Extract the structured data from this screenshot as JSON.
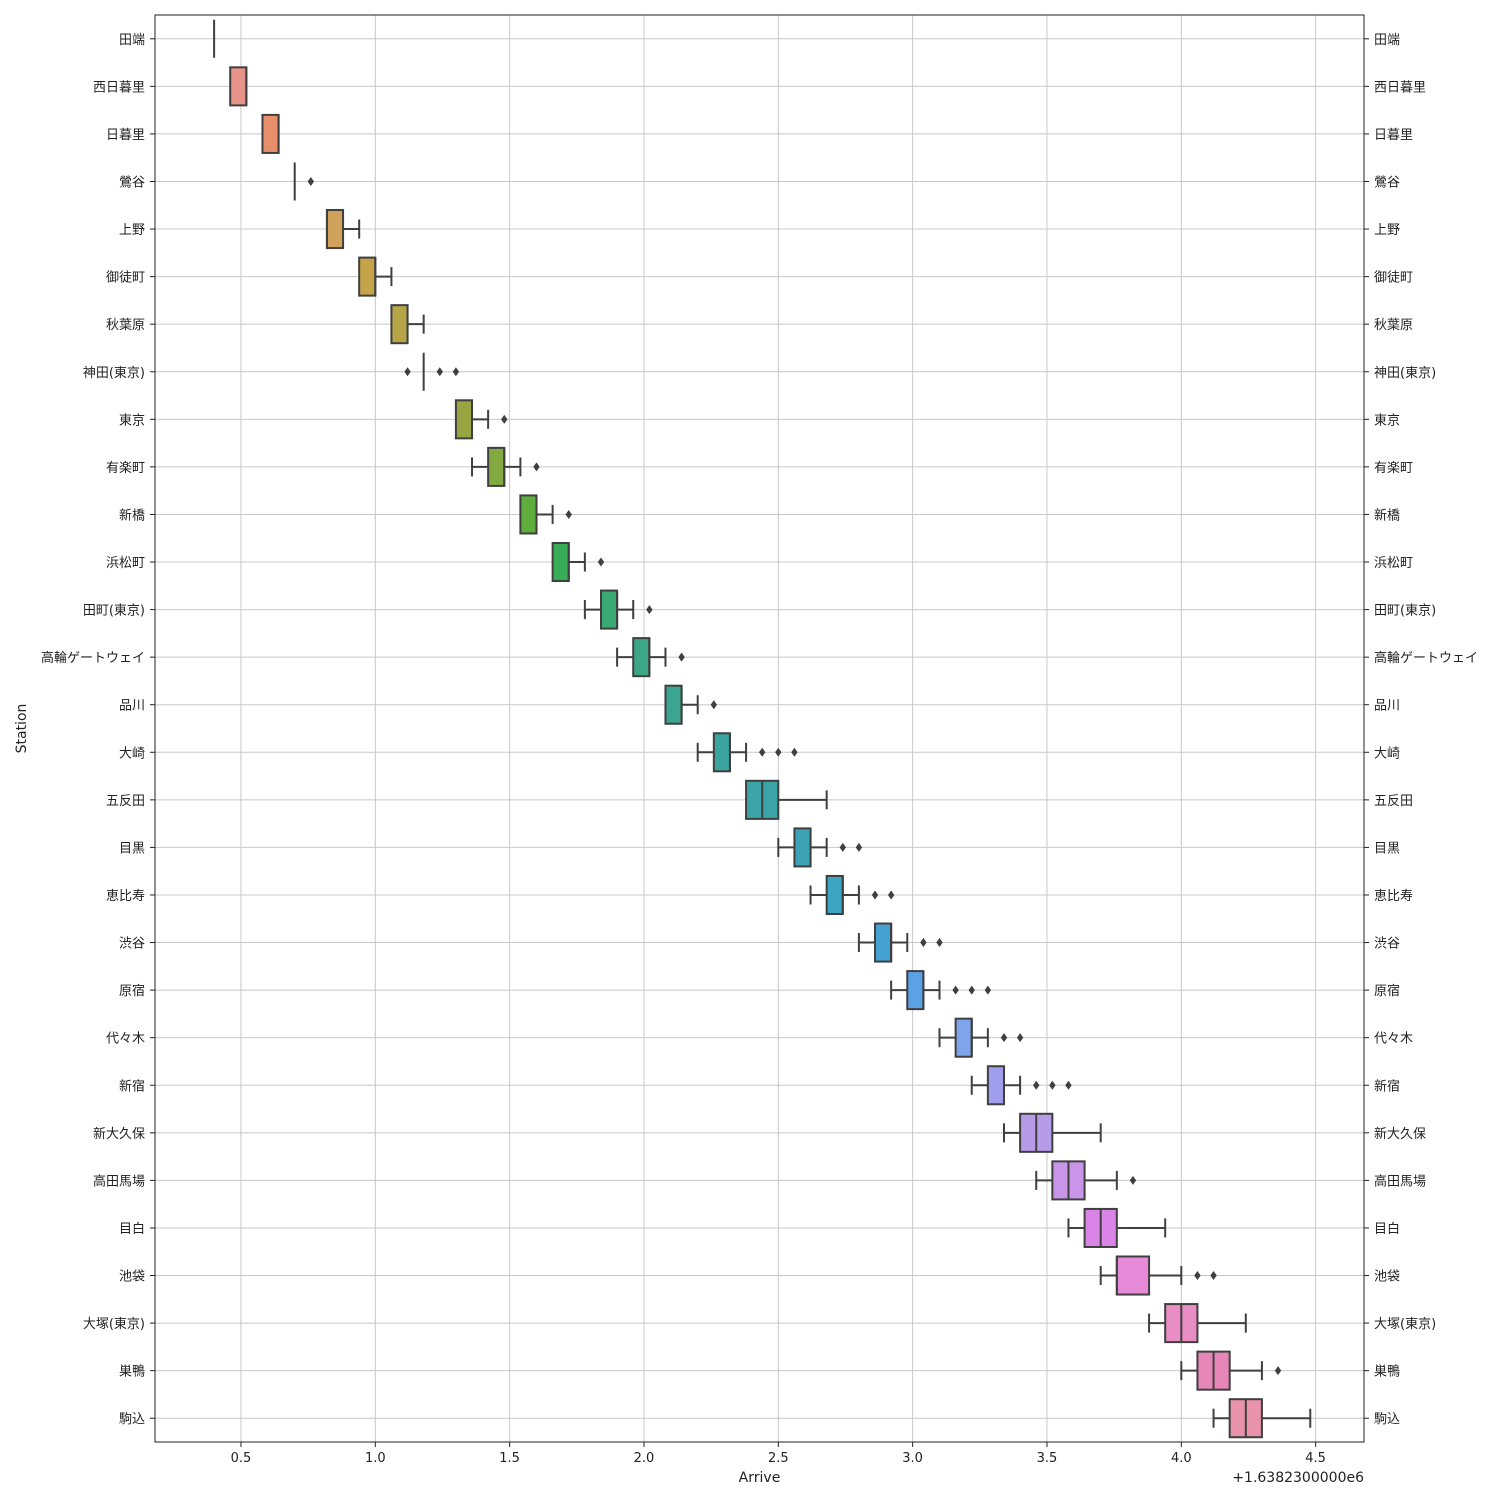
{
  "chart_data": {
    "type": "boxplot",
    "orientation": "horizontal",
    "xlabel": "Arrive",
    "ylabel": "Station",
    "x_offset_label": "+1.6382300000e6",
    "xlim": [
      0.18,
      4.68
    ],
    "xticks": [
      "0.5",
      "1.0",
      "1.5",
      "2.0",
      "2.5",
      "3.0",
      "3.5",
      "4.0",
      "4.5"
    ],
    "grid": true,
    "mirror_y_labels": true,
    "categories": [
      "田端",
      "西日暮里",
      "日暮里",
      "鶯谷",
      "上野",
      "御徒町",
      "秋葉原",
      "神田(東京)",
      "東京",
      "有楽町",
      "新橋",
      "浜松町",
      "田町(東京)",
      "高輪ゲートウェイ",
      "品川",
      "大崎",
      "五反田",
      "目黒",
      "恵比寿",
      "渋谷",
      "原宿",
      "代々木",
      "新宿",
      "新大久保",
      "高田馬場",
      "目白",
      "池袋",
      "大塚(東京)",
      "巣鴨",
      "駒込"
    ],
    "boxes": [
      {
        "station": "田端",
        "whislo": 0.4,
        "q1": 0.4,
        "med": 0.4,
        "q3": 0.4,
        "whishi": 0.4,
        "fliers": [],
        "color": "#e8837a"
      },
      {
        "station": "西日暮里",
        "whislo": 0.46,
        "q1": 0.46,
        "med": 0.52,
        "q3": 0.52,
        "whishi": 0.52,
        "fliers": [],
        "color": "#e8948a"
      },
      {
        "station": "日暮里",
        "whislo": 0.58,
        "q1": 0.58,
        "med": 0.64,
        "q3": 0.64,
        "whishi": 0.64,
        "fliers": [],
        "color": "#e98e6b"
      },
      {
        "station": "鶯谷",
        "whislo": 0.7,
        "q1": 0.7,
        "med": 0.7,
        "q3": 0.7,
        "whishi": 0.7,
        "fliers": [
          0.76
        ],
        "color": "#e3995a"
      },
      {
        "station": "上野",
        "whislo": 0.82,
        "q1": 0.82,
        "med": 0.82,
        "q3": 0.88,
        "whishi": 0.94,
        "fliers": [],
        "color": "#d1a25c"
      },
      {
        "station": "御徒町",
        "whislo": 0.94,
        "q1": 0.94,
        "med": 1.0,
        "q3": 1.0,
        "whishi": 1.06,
        "fliers": [],
        "color": "#c4a349"
      },
      {
        "station": "秋葉原",
        "whislo": 1.06,
        "q1": 1.06,
        "med": 1.12,
        "q3": 1.12,
        "whishi": 1.18,
        "fliers": [],
        "color": "#b7a548"
      },
      {
        "station": "神田(東京)",
        "whislo": 1.18,
        "q1": 1.18,
        "med": 1.18,
        "q3": 1.18,
        "whishi": 1.18,
        "fliers": [
          1.12,
          1.24,
          1.3
        ],
        "color": "#a9a845"
      },
      {
        "station": "東京",
        "whislo": 1.3,
        "q1": 1.3,
        "med": 1.36,
        "q3": 1.36,
        "whishi": 1.42,
        "fliers": [
          1.48
        ],
        "color": "#98a641"
      },
      {
        "station": "有楽町",
        "whislo": 1.36,
        "q1": 1.42,
        "med": 1.48,
        "q3": 1.48,
        "whishi": 1.54,
        "fliers": [
          1.6
        ],
        "color": "#82aa40"
      },
      {
        "station": "新橋",
        "whislo": 1.54,
        "q1": 1.54,
        "med": 1.6,
        "q3": 1.6,
        "whishi": 1.66,
        "fliers": [
          1.72
        ],
        "color": "#5fae3d"
      },
      {
        "station": "浜松町",
        "whislo": 1.66,
        "q1": 1.66,
        "med": 1.72,
        "q3": 1.72,
        "whishi": 1.78,
        "fliers": [
          1.84
        ],
        "color": "#39ad55"
      },
      {
        "station": "田町(東京)",
        "whislo": 1.78,
        "q1": 1.84,
        "med": 1.9,
        "q3": 1.9,
        "whishi": 1.96,
        "fliers": [
          2.02
        ],
        "color": "#3aa972"
      },
      {
        "station": "高輪ゲートウェイ",
        "whislo": 1.9,
        "q1": 1.96,
        "med": 2.02,
        "q3": 2.02,
        "whishi": 2.08,
        "fliers": [
          2.14
        ],
        "color": "#3ca784"
      },
      {
        "station": "品川",
        "whislo": 2.08,
        "q1": 2.08,
        "med": 2.14,
        "q3": 2.14,
        "whishi": 2.2,
        "fliers": [
          2.26
        ],
        "color": "#3ba592"
      },
      {
        "station": "大崎",
        "whislo": 2.2,
        "q1": 2.26,
        "med": 2.32,
        "q3": 2.32,
        "whishi": 2.38,
        "fliers": [
          2.44,
          2.5,
          2.56
        ],
        "color": "#3aa59f"
      },
      {
        "station": "五反田",
        "whislo": 2.38,
        "q1": 2.38,
        "med": 2.44,
        "q3": 2.5,
        "whishi": 2.68,
        "fliers": [],
        "color": "#3aa4a9"
      },
      {
        "station": "目黒",
        "whislo": 2.5,
        "q1": 2.56,
        "med": 2.62,
        "q3": 2.62,
        "whishi": 2.68,
        "fliers": [
          2.74,
          2.8
        ],
        "color": "#3ba3b5"
      },
      {
        "station": "恵比寿",
        "whislo": 2.62,
        "q1": 2.68,
        "med": 2.74,
        "q3": 2.74,
        "whishi": 2.8,
        "fliers": [
          2.86,
          2.92
        ],
        "color": "#3da5c3"
      },
      {
        "station": "渋谷",
        "whislo": 2.8,
        "q1": 2.86,
        "med": 2.92,
        "q3": 2.92,
        "whishi": 2.98,
        "fliers": [
          3.04,
          3.1
        ],
        "color": "#44a3d3"
      },
      {
        "station": "原宿",
        "whislo": 2.92,
        "q1": 2.98,
        "med": 3.04,
        "q3": 3.04,
        "whishi": 3.1,
        "fliers": [
          3.16,
          3.22,
          3.28
        ],
        "color": "#5aa1e6"
      },
      {
        "station": "代々木",
        "whislo": 3.1,
        "q1": 3.16,
        "med": 3.22,
        "q3": 3.22,
        "whishi": 3.28,
        "fliers": [
          3.34,
          3.4
        ],
        "color": "#7ea5ea"
      },
      {
        "station": "新宿",
        "whislo": 3.22,
        "q1": 3.28,
        "med": 3.34,
        "q3": 3.34,
        "whishi": 3.4,
        "fliers": [
          3.46,
          3.52,
          3.58
        ],
        "color": "#a19fec"
      },
      {
        "station": "新大久保",
        "whislo": 3.34,
        "q1": 3.4,
        "med": 3.46,
        "q3": 3.52,
        "whishi": 3.7,
        "fliers": [],
        "color": "#b59be8"
      },
      {
        "station": "高田馬場",
        "whislo": 3.46,
        "q1": 3.52,
        "med": 3.58,
        "q3": 3.64,
        "whishi": 3.76,
        "fliers": [
          3.82
        ],
        "color": "#c895e8"
      },
      {
        "station": "目白",
        "whislo": 3.58,
        "q1": 3.64,
        "med": 3.7,
        "q3": 3.76,
        "whishi": 3.94,
        "fliers": [],
        "color": "#d984e6"
      },
      {
        "station": "池袋",
        "whislo": 3.7,
        "q1": 3.76,
        "med": 3.76,
        "q3": 3.88,
        "whishi": 4.0,
        "fliers": [
          4.06,
          4.12
        ],
        "color": "#e68ad8"
      },
      {
        "station": "大塚(東京)",
        "whislo": 3.88,
        "q1": 3.94,
        "med": 4.0,
        "q3": 4.06,
        "whishi": 4.24,
        "fliers": [],
        "color": "#e88ec4"
      },
      {
        "station": "巣鴨",
        "whislo": 4.0,
        "q1": 4.06,
        "med": 4.12,
        "q3": 4.18,
        "whishi": 4.3,
        "fliers": [
          4.36
        ],
        "color": "#e787b8"
      },
      {
        "station": "駒込",
        "whislo": 4.12,
        "q1": 4.18,
        "med": 4.24,
        "q3": 4.3,
        "whishi": 4.48,
        "fliers": [],
        "color": "#e892ac"
      }
    ]
  }
}
